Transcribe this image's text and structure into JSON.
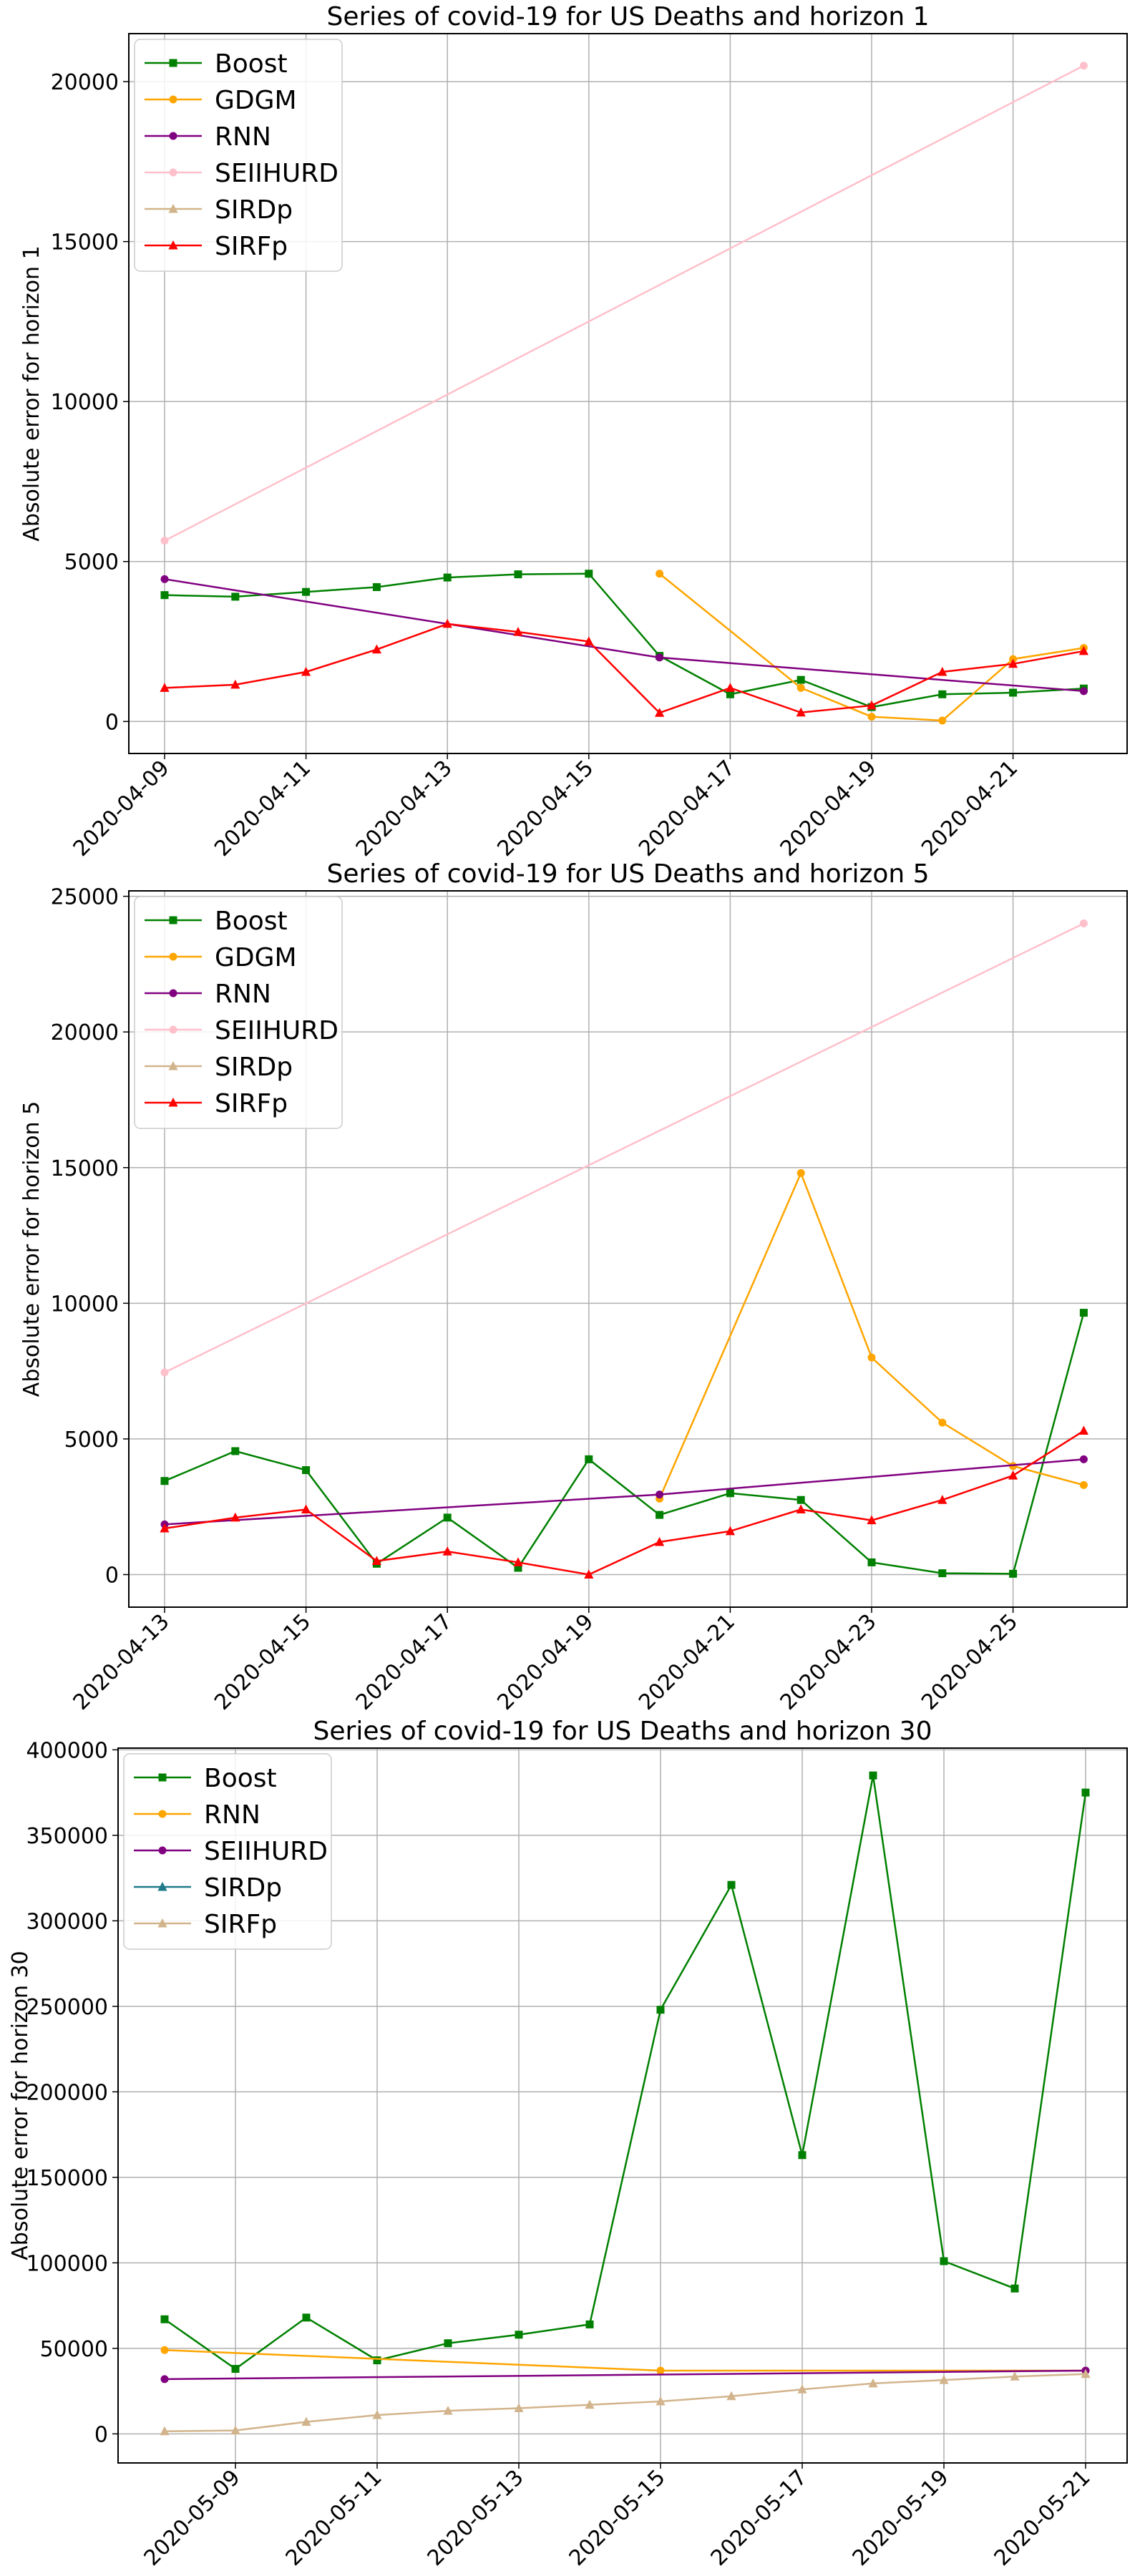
{
  "chart_data": [
    {
      "type": "line",
      "title": "Series of covid-19 for US Deaths and horizon 1",
      "xlabel": "",
      "ylabel": "Absolute error for horizon 1",
      "x_start": "2020-04-09",
      "ylim": [
        -1000,
        21500
      ],
      "yticks": [
        0,
        5000,
        10000,
        15000,
        20000
      ],
      "xticks": [
        "2020-04-09",
        "2020-04-11",
        "2020-04-13",
        "2020-04-15",
        "2020-04-17",
        "2020-04-19",
        "2020-04-21"
      ],
      "grid": true,
      "legend_position": "upper-left",
      "series": [
        {
          "name": "Boost",
          "color": "#008000",
          "marker": "square",
          "x": [
            "2020-04-09",
            "2020-04-10",
            "2020-04-11",
            "2020-04-12",
            "2020-04-13",
            "2020-04-14",
            "2020-04-15",
            "2020-04-16",
            "2020-04-17",
            "2020-04-18",
            "2020-04-19",
            "2020-04-20",
            "2020-04-21",
            "2020-04-22"
          ],
          "values": [
            3950,
            3900,
            4050,
            4200,
            4500,
            4600,
            4620,
            2050,
            850,
            1300,
            450,
            850,
            900,
            1030
          ]
        },
        {
          "name": "GDGM",
          "color": "#ffa500",
          "marker": "circle",
          "x": [
            "2020-04-16",
            "2020-04-18",
            "2020-04-19",
            "2020-04-20",
            "2020-04-21",
            "2020-04-22"
          ],
          "values": [
            4620,
            1050,
            150,
            30,
            1950,
            2300
          ]
        },
        {
          "name": "RNN",
          "color": "#800080",
          "marker": "circle",
          "x": [
            "2020-04-09",
            "2020-04-16",
            "2020-04-22"
          ],
          "values": [
            4450,
            2000,
            950
          ]
        },
        {
          "name": "SEIIHURD",
          "color": "#ffc0cb",
          "marker": "circle",
          "x": [
            "2020-04-09",
            "2020-04-22"
          ],
          "values": [
            5650,
            20500
          ]
        },
        {
          "name": "SIRDp",
          "color": "#d2b48c",
          "marker": "triangle",
          "x": [],
          "values": []
        },
        {
          "name": "SIRFp",
          "color": "#ff0000",
          "marker": "triangle",
          "x": [
            "2020-04-09",
            "2020-04-10",
            "2020-04-11",
            "2020-04-12",
            "2020-04-13",
            "2020-04-14",
            "2020-04-15",
            "2020-04-16",
            "2020-04-17",
            "2020-04-18",
            "2020-04-19",
            "2020-04-20",
            "2020-04-21",
            "2020-04-22"
          ],
          "values": [
            1050,
            1150,
            1550,
            2250,
            3050,
            2800,
            2500,
            270,
            1050,
            280,
            500,
            1550,
            1800,
            2200
          ]
        }
      ]
    },
    {
      "type": "line",
      "title": "Series of covid-19 for US Deaths and horizon 5",
      "xlabel": "",
      "ylabel": "Absolute error for horizon 5",
      "x_start": "2020-04-13",
      "ylim": [
        -1200,
        25200
      ],
      "yticks": [
        0,
        5000,
        10000,
        15000,
        20000,
        25000
      ],
      "xticks": [
        "2020-04-13",
        "2020-04-15",
        "2020-04-17",
        "2020-04-19",
        "2020-04-21",
        "2020-04-23",
        "2020-04-25"
      ],
      "grid": true,
      "legend_position": "upper-left",
      "series": [
        {
          "name": "Boost",
          "color": "#008000",
          "marker": "square",
          "x": [
            "2020-04-13",
            "2020-04-14",
            "2020-04-15",
            "2020-04-16",
            "2020-04-17",
            "2020-04-18",
            "2020-04-19",
            "2020-04-20",
            "2020-04-21",
            "2020-04-22",
            "2020-04-23",
            "2020-04-24",
            "2020-04-25",
            "2020-04-26"
          ],
          "values": [
            3450,
            4550,
            3850,
            400,
            2100,
            250,
            4250,
            2200,
            3000,
            2750,
            450,
            50,
            30,
            9650
          ]
        },
        {
          "name": "GDGM",
          "color": "#ffa500",
          "marker": "circle",
          "x": [
            "2020-04-20",
            "2020-04-22",
            "2020-04-23",
            "2020-04-24",
            "2020-04-25",
            "2020-04-26"
          ],
          "values": [
            2800,
            14800,
            8000,
            5600,
            4000,
            3300
          ]
        },
        {
          "name": "RNN",
          "color": "#800080",
          "marker": "circle",
          "x": [
            "2020-04-13",
            "2020-04-20",
            "2020-04-26"
          ],
          "values": [
            1850,
            2950,
            4250
          ]
        },
        {
          "name": "SEIIHURD",
          "color": "#ffc0cb",
          "marker": "circle",
          "x": [
            "2020-04-13",
            "2020-04-26"
          ],
          "values": [
            7450,
            24000
          ]
        },
        {
          "name": "SIRDp",
          "color": "#d2b48c",
          "marker": "triangle",
          "x": [],
          "values": []
        },
        {
          "name": "SIRFp",
          "color": "#ff0000",
          "marker": "triangle",
          "x": [
            "2020-04-13",
            "2020-04-14",
            "2020-04-15",
            "2020-04-16",
            "2020-04-17",
            "2020-04-18",
            "2020-04-19",
            "2020-04-20",
            "2020-04-21",
            "2020-04-22",
            "2020-04-23",
            "2020-04-24",
            "2020-04-25",
            "2020-04-26"
          ],
          "values": [
            1700,
            2100,
            2400,
            500,
            850,
            450,
            0,
            1200,
            1600,
            2400,
            2000,
            2750,
            3650,
            5300
          ]
        }
      ]
    },
    {
      "type": "line",
      "title": "Series of covid-19 for US Deaths and horizon 30",
      "xlabel": "",
      "ylabel": "Absolute error for horizon 30",
      "x_start": "2020-05-08",
      "ylim": [
        -17000,
        401000
      ],
      "yticks": [
        0,
        50000,
        100000,
        150000,
        200000,
        250000,
        300000,
        350000,
        400000
      ],
      "xticks": [
        "2020-05-09",
        "2020-05-11",
        "2020-05-13",
        "2020-05-15",
        "2020-05-17",
        "2020-05-19",
        "2020-05-21"
      ],
      "grid": true,
      "legend_position": "upper-left",
      "series": [
        {
          "name": "Boost",
          "color": "#008000",
          "marker": "square",
          "x": [
            "2020-05-08",
            "2020-05-09",
            "2020-05-10",
            "2020-05-11",
            "2020-05-12",
            "2020-05-13",
            "2020-05-14",
            "2020-05-15",
            "2020-05-16",
            "2020-05-17",
            "2020-05-18",
            "2020-05-19",
            "2020-05-20",
            "2020-05-21"
          ],
          "values": [
            67000,
            38000,
            68000,
            43000,
            53000,
            58000,
            64000,
            248000,
            321000,
            163000,
            385000,
            101000,
            85000,
            375000
          ]
        },
        {
          "name": "RNN",
          "color": "#ffa500",
          "marker": "circle",
          "x": [
            "2020-05-08",
            "2020-05-15",
            "2020-05-21"
          ],
          "values": [
            49000,
            37000,
            37000
          ]
        },
        {
          "name": "SEIIHURD",
          "color": "#800080",
          "marker": "circle",
          "x": [
            "2020-05-08",
            "2020-05-21"
          ],
          "values": [
            32000,
            37000
          ]
        },
        {
          "name": "SIRDp",
          "color": "#1f7a8c",
          "marker": "triangle",
          "x": [],
          "values": []
        },
        {
          "name": "SIRFp",
          "color": "#d2b48c",
          "marker": "triangle",
          "x": [
            "2020-05-08",
            "2020-05-09",
            "2020-05-10",
            "2020-05-11",
            "2020-05-12",
            "2020-05-13",
            "2020-05-14",
            "2020-05-15",
            "2020-05-16",
            "2020-05-17",
            "2020-05-18",
            "2020-05-19",
            "2020-05-20",
            "2020-05-21"
          ],
          "values": [
            1500,
            2000,
            7000,
            11000,
            13500,
            15000,
            17000,
            19000,
            22000,
            26000,
            29500,
            31500,
            33500,
            35000
          ]
        }
      ]
    }
  ]
}
